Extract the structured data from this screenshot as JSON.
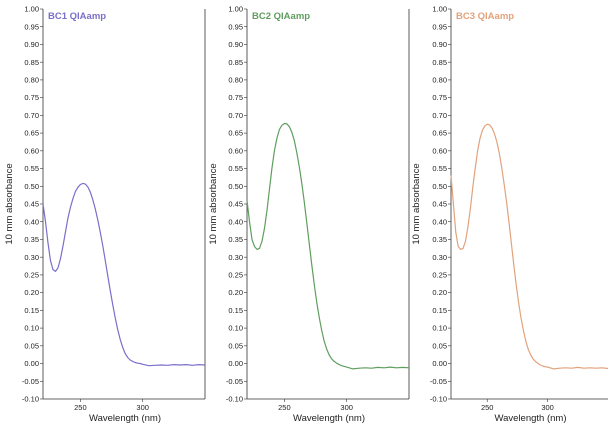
{
  "chart_data": [
    {
      "type": "line",
      "title": "BC1 QIAamp",
      "xlabel": "Wavelength (nm)",
      "ylabel": "10 mm absorbance",
      "color": "#7a6fc9",
      "xlim": [
        220,
        350
      ],
      "ylim": [
        -0.1,
        1.0
      ],
      "xticks": [
        "250",
        "300"
      ],
      "yticks": [
        "-0.10",
        "-0.05",
        "0.00",
        "0.05",
        "0.10",
        "0.15",
        "0.20",
        "0.25",
        "0.30",
        "0.35",
        "0.40",
        "0.45",
        "0.50",
        "0.55",
        "0.60",
        "0.65",
        "0.70",
        "0.75",
        "0.80",
        "0.85",
        "0.90",
        "0.95",
        "1.00"
      ],
      "x": [
        220,
        222,
        224,
        226,
        228,
        230,
        232,
        234,
        236,
        238,
        240,
        242,
        244,
        246,
        248,
        250,
        252,
        254,
        256,
        258,
        260,
        262,
        264,
        266,
        268,
        270,
        272,
        274,
        276,
        278,
        280,
        282,
        284,
        286,
        288,
        290,
        292,
        294,
        296,
        298,
        300,
        305,
        310,
        315,
        320,
        325,
        330,
        335,
        340,
        345,
        350
      ],
      "y": [
        0.45,
        0.4,
        0.34,
        0.29,
        0.265,
        0.26,
        0.27,
        0.295,
        0.33,
        0.37,
        0.41,
        0.44,
        0.465,
        0.485,
        0.497,
        0.505,
        0.508,
        0.506,
        0.498,
        0.483,
        0.462,
        0.436,
        0.405,
        0.37,
        0.332,
        0.29,
        0.247,
        0.205,
        0.165,
        0.128,
        0.095,
        0.067,
        0.045,
        0.028,
        0.017,
        0.01,
        0.006,
        0.003,
        0.001,
        0.0,
        -0.002,
        -0.006,
        -0.005,
        -0.004,
        -0.005,
        -0.003,
        -0.004,
        -0.003,
        -0.005,
        -0.003,
        -0.004
      ]
    },
    {
      "type": "line",
      "title": "BC2 QIAamp",
      "xlabel": "Wavelength (nm)",
      "ylabel": "10 mm absorbance",
      "color": "#5f9e5f",
      "xlim": [
        220,
        350
      ],
      "ylim": [
        -0.1,
        1.0
      ],
      "xticks": [
        "250",
        "300"
      ],
      "yticks": [
        "-0.10",
        "-0.05",
        "0.00",
        "0.05",
        "0.10",
        "0.15",
        "0.20",
        "0.25",
        "0.30",
        "0.35",
        "0.40",
        "0.45",
        "0.50",
        "0.55",
        "0.60",
        "0.65",
        "0.70",
        "0.75",
        "0.80",
        "0.85",
        "0.90",
        "0.95",
        "1.00"
      ],
      "x": [
        220,
        222,
        224,
        226,
        228,
        230,
        232,
        234,
        236,
        238,
        240,
        242,
        244,
        246,
        248,
        250,
        252,
        254,
        256,
        258,
        260,
        262,
        264,
        266,
        268,
        270,
        272,
        274,
        276,
        278,
        280,
        282,
        284,
        286,
        288,
        290,
        292,
        294,
        296,
        298,
        300,
        305,
        310,
        315,
        320,
        325,
        330,
        335,
        340,
        345,
        350
      ],
      "y": [
        0.46,
        0.4,
        0.35,
        0.33,
        0.322,
        0.325,
        0.345,
        0.38,
        0.43,
        0.49,
        0.55,
        0.6,
        0.635,
        0.66,
        0.672,
        0.677,
        0.676,
        0.668,
        0.652,
        0.628,
        0.595,
        0.555,
        0.508,
        0.455,
        0.397,
        0.337,
        0.278,
        0.222,
        0.172,
        0.129,
        0.092,
        0.062,
        0.04,
        0.024,
        0.013,
        0.006,
        0.001,
        -0.003,
        -0.006,
        -0.008,
        -0.01,
        -0.015,
        -0.013,
        -0.012,
        -0.013,
        -0.011,
        -0.012,
        -0.01,
        -0.012,
        -0.011,
        -0.012
      ]
    },
    {
      "type": "line",
      "title": "BC3 QIAamp",
      "xlabel": "Wavelength (nm)",
      "ylabel": "10 mm absorbance",
      "color": "#e2a27c",
      "xlim": [
        220,
        350
      ],
      "ylim": [
        -0.1,
        1.0
      ],
      "xticks": [
        "250",
        "300"
      ],
      "yticks": [
        "-0.10",
        "-0.05",
        "0.00",
        "0.05",
        "0.10",
        "0.15",
        "0.20",
        "0.25",
        "0.30",
        "0.35",
        "0.40",
        "0.45",
        "0.50",
        "0.55",
        "0.60",
        "0.65",
        "0.70",
        "0.75",
        "0.80",
        "0.85",
        "0.90",
        "0.95",
        "1.00"
      ],
      "x": [
        220,
        222,
        224,
        226,
        228,
        230,
        232,
        234,
        236,
        238,
        240,
        242,
        244,
        246,
        248,
        250,
        252,
        254,
        256,
        258,
        260,
        262,
        264,
        266,
        268,
        270,
        272,
        274,
        276,
        278,
        280,
        282,
        284,
        286,
        288,
        290,
        292,
        294,
        296,
        298,
        300,
        305,
        310,
        315,
        320,
        325,
        330,
        335,
        340,
        345,
        350
      ],
      "y": [
        0.53,
        0.45,
        0.37,
        0.33,
        0.322,
        0.325,
        0.345,
        0.385,
        0.435,
        0.495,
        0.55,
        0.6,
        0.635,
        0.658,
        0.67,
        0.675,
        0.673,
        0.664,
        0.648,
        0.625,
        0.593,
        0.553,
        0.507,
        0.455,
        0.398,
        0.338,
        0.278,
        0.222,
        0.172,
        0.129,
        0.092,
        0.062,
        0.04,
        0.024,
        0.013,
        0.006,
        0.0,
        -0.004,
        -0.007,
        -0.009,
        -0.01,
        -0.015,
        -0.013,
        -0.012,
        -0.013,
        -0.011,
        -0.013,
        -0.012,
        -0.013,
        -0.012,
        -0.014
      ]
    }
  ]
}
